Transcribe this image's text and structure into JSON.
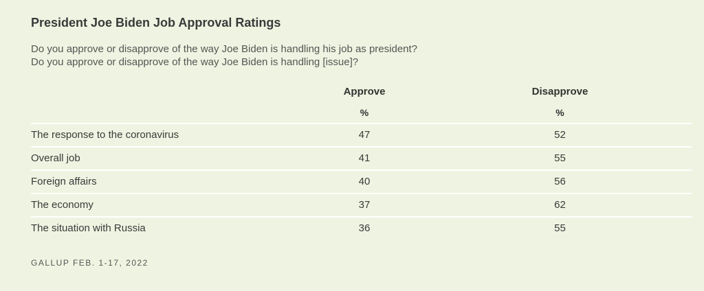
{
  "title": "President Joe Biden Job Approval Ratings",
  "questions": [
    "Do you approve or disapprove of the way Joe Biden is handling his job as president?",
    "Do you approve or disapprove of the way Joe Biden is handling [issue]?"
  ],
  "table": {
    "columns": [
      "Approve",
      "Disapprove"
    ],
    "units": [
      "%",
      "%"
    ],
    "rows": [
      {
        "label": "The response to the coronavirus",
        "approve": "47",
        "disapprove": "52"
      },
      {
        "label": "Overall job",
        "approve": "41",
        "disapprove": "55"
      },
      {
        "label": "Foreign affairs",
        "approve": "40",
        "disapprove": "56"
      },
      {
        "label": "The economy",
        "approve": "37",
        "disapprove": "62"
      },
      {
        "label": "The situation with Russia",
        "approve": "36",
        "disapprove": "55"
      }
    ]
  },
  "source": "GALLUP FEB. 1-17, 2022"
}
